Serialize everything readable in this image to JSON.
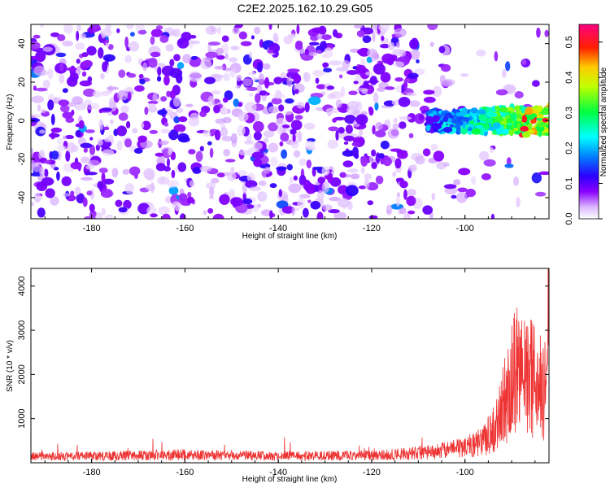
{
  "title": "C2E2.2025.162.10.29.G05",
  "chart_data": [
    {
      "type": "heatmap",
      "xlabel": "Height of straight line (km)",
      "ylabel": "Frequency (Hz)",
      "xlim": [
        -193,
        -82
      ],
      "ylim": [
        -51,
        50
      ],
      "x_ticks": [
        -180,
        -160,
        -140,
        -120,
        -100
      ],
      "y_ticks": [
        -40,
        -20,
        0,
        20,
        40
      ],
      "colorbar": {
        "label": "Normalized spectral amplitude",
        "range": [
          0.0,
          0.55
        ],
        "ticks": [
          0.0,
          0.1,
          0.2,
          0.3,
          0.4,
          0.5
        ],
        "colormap": [
          "#ffffff",
          "#d9b3ff",
          "#8000ff",
          "#0000ff",
          "#00ffff",
          "#00ff00",
          "#ffff00",
          "#ff0000",
          "#ff0080"
        ]
      },
      "features": {
        "background_level": 0.04,
        "signal_band_frequency": 0,
        "signal_band_start_x": -108,
        "peak_amplitude": 0.53
      }
    },
    {
      "type": "line",
      "xlabel": "Height of straight line (km)",
      "ylabel": "SNR (10 * v/v)",
      "xlim": [
        -193,
        -82
      ],
      "ylim": [
        0,
        4400
      ],
      "x_ticks": [
        -180,
        -160,
        -140,
        -120,
        -100
      ],
      "y_ticks": [
        1000,
        2000,
        3000,
        4000
      ],
      "line_color": "#ee3333",
      "x": [
        -193,
        -180,
        -170,
        -160,
        -150,
        -140,
        -130,
        -120,
        -115,
        -110,
        -105,
        -100,
        -97,
        -95,
        -93,
        -91,
        -89,
        -87,
        -85,
        -83,
        -82
      ],
      "y": [
        220,
        230,
        260,
        280,
        250,
        240,
        245,
        260,
        290,
        340,
        420,
        520,
        650,
        900,
        1300,
        2200,
        3100,
        2900,
        2600,
        2400,
        4300
      ]
    }
  ]
}
